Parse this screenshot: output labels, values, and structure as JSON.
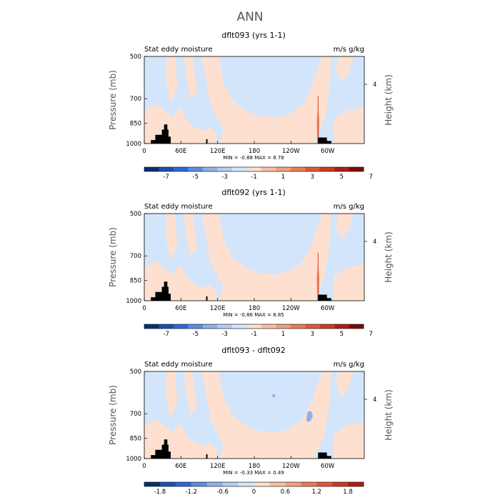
{
  "figure_title": "ANN",
  "chart_data": [
    {
      "type": "heatmap",
      "title": "dflt093 (yrs 1-1)",
      "left_label": "Stat eddy moisture",
      "units": "m/s g/kg",
      "ylabel": "Pressure (mb)",
      "ylabel_right": "Height (km)",
      "yticks": [
        "500",
        "700",
        "850",
        "1000"
      ],
      "yticks_right": [
        "4"
      ],
      "xticks": [
        "0",
        "60E",
        "120E",
        "180",
        "120W",
        "60W"
      ],
      "xlim": [
        0,
        360
      ],
      "ylim": [
        1000,
        500
      ],
      "y_log_scale": true,
      "stats": "MIN =   -0.88   MAX =    8.78",
      "colorbar_labels": [
        "-7",
        "-5",
        "-3",
        "-1",
        "1",
        "3",
        "5",
        "7"
      ],
      "colorbar_colors": [
        "#08306b",
        "#1e4fb0",
        "#2e6ad6",
        "#5a8ee0",
        "#8fb2ea",
        "#b3cdf2",
        "#d3e5fa",
        "#fde0d0",
        "#f9c0a5",
        "#f4a07e",
        "#ec7b58",
        "#e0583a",
        "#cf3a25",
        "#b01e15",
        "#7b0a0a"
      ],
      "dominant_positive_color": "#fde0d0",
      "dominant_negative_color": "#d3e5fa"
    },
    {
      "type": "heatmap",
      "title": "dflt092 (yrs 1-1)",
      "left_label": "Stat eddy moisture",
      "units": "m/s g/kg",
      "ylabel": "Pressure (mb)",
      "ylabel_right": "Height (km)",
      "yticks": [
        "500",
        "700",
        "850",
        "1000"
      ],
      "yticks_right": [
        "4"
      ],
      "xticks": [
        "0",
        "60E",
        "120E",
        "180",
        "120W",
        "60W"
      ],
      "xlim": [
        0,
        360
      ],
      "ylim": [
        1000,
        500
      ],
      "y_log_scale": true,
      "stats": "MIN =   -0.86   MAX =    8.85",
      "colorbar_labels": [
        "-7",
        "-5",
        "-3",
        "-1",
        "1",
        "3",
        "5",
        "7"
      ],
      "colorbar_colors": [
        "#08306b",
        "#1e4fb0",
        "#2e6ad6",
        "#5a8ee0",
        "#8fb2ea",
        "#b3cdf2",
        "#d3e5fa",
        "#fde0d0",
        "#f9c0a5",
        "#f4a07e",
        "#ec7b58",
        "#e0583a",
        "#cf3a25",
        "#b01e15",
        "#7b0a0a"
      ],
      "dominant_positive_color": "#fde0d0",
      "dominant_negative_color": "#d3e5fa"
    },
    {
      "type": "heatmap",
      "title": "dflt093 - dflt092",
      "left_label": "Stat eddy moisture",
      "units": "m/s g/kg",
      "ylabel": "Pressure (mb)",
      "ylabel_right": "Height (km)",
      "yticks": [
        "500",
        "700",
        "850",
        "1000"
      ],
      "yticks_right": [
        "4"
      ],
      "xticks": [
        "0",
        "60E",
        "120E",
        "180",
        "120W",
        "60W"
      ],
      "xlim": [
        0,
        360
      ],
      "ylim": [
        1000,
        500
      ],
      "y_log_scale": true,
      "stats": "MIN =   -0.33   MAX =    0.49",
      "colorbar_labels": [
        "-1.8",
        "-1.2",
        "-0.6",
        "0",
        "0.6",
        "1.2",
        "1.8"
      ],
      "colorbar_colors": [
        "#08306b",
        "#1e4fb0",
        "#2e6ad6",
        "#5a8ee0",
        "#8fb2ea",
        "#b3cdf2",
        "#d3e5fa",
        "#fde0d0",
        "#f9c0a5",
        "#f4a07e",
        "#ec7b58",
        "#e0583a",
        "#cf3a25",
        "#b01e15"
      ],
      "dominant_positive_color": "#fde0d0",
      "dominant_negative_color": "#d3e5fa"
    }
  ]
}
